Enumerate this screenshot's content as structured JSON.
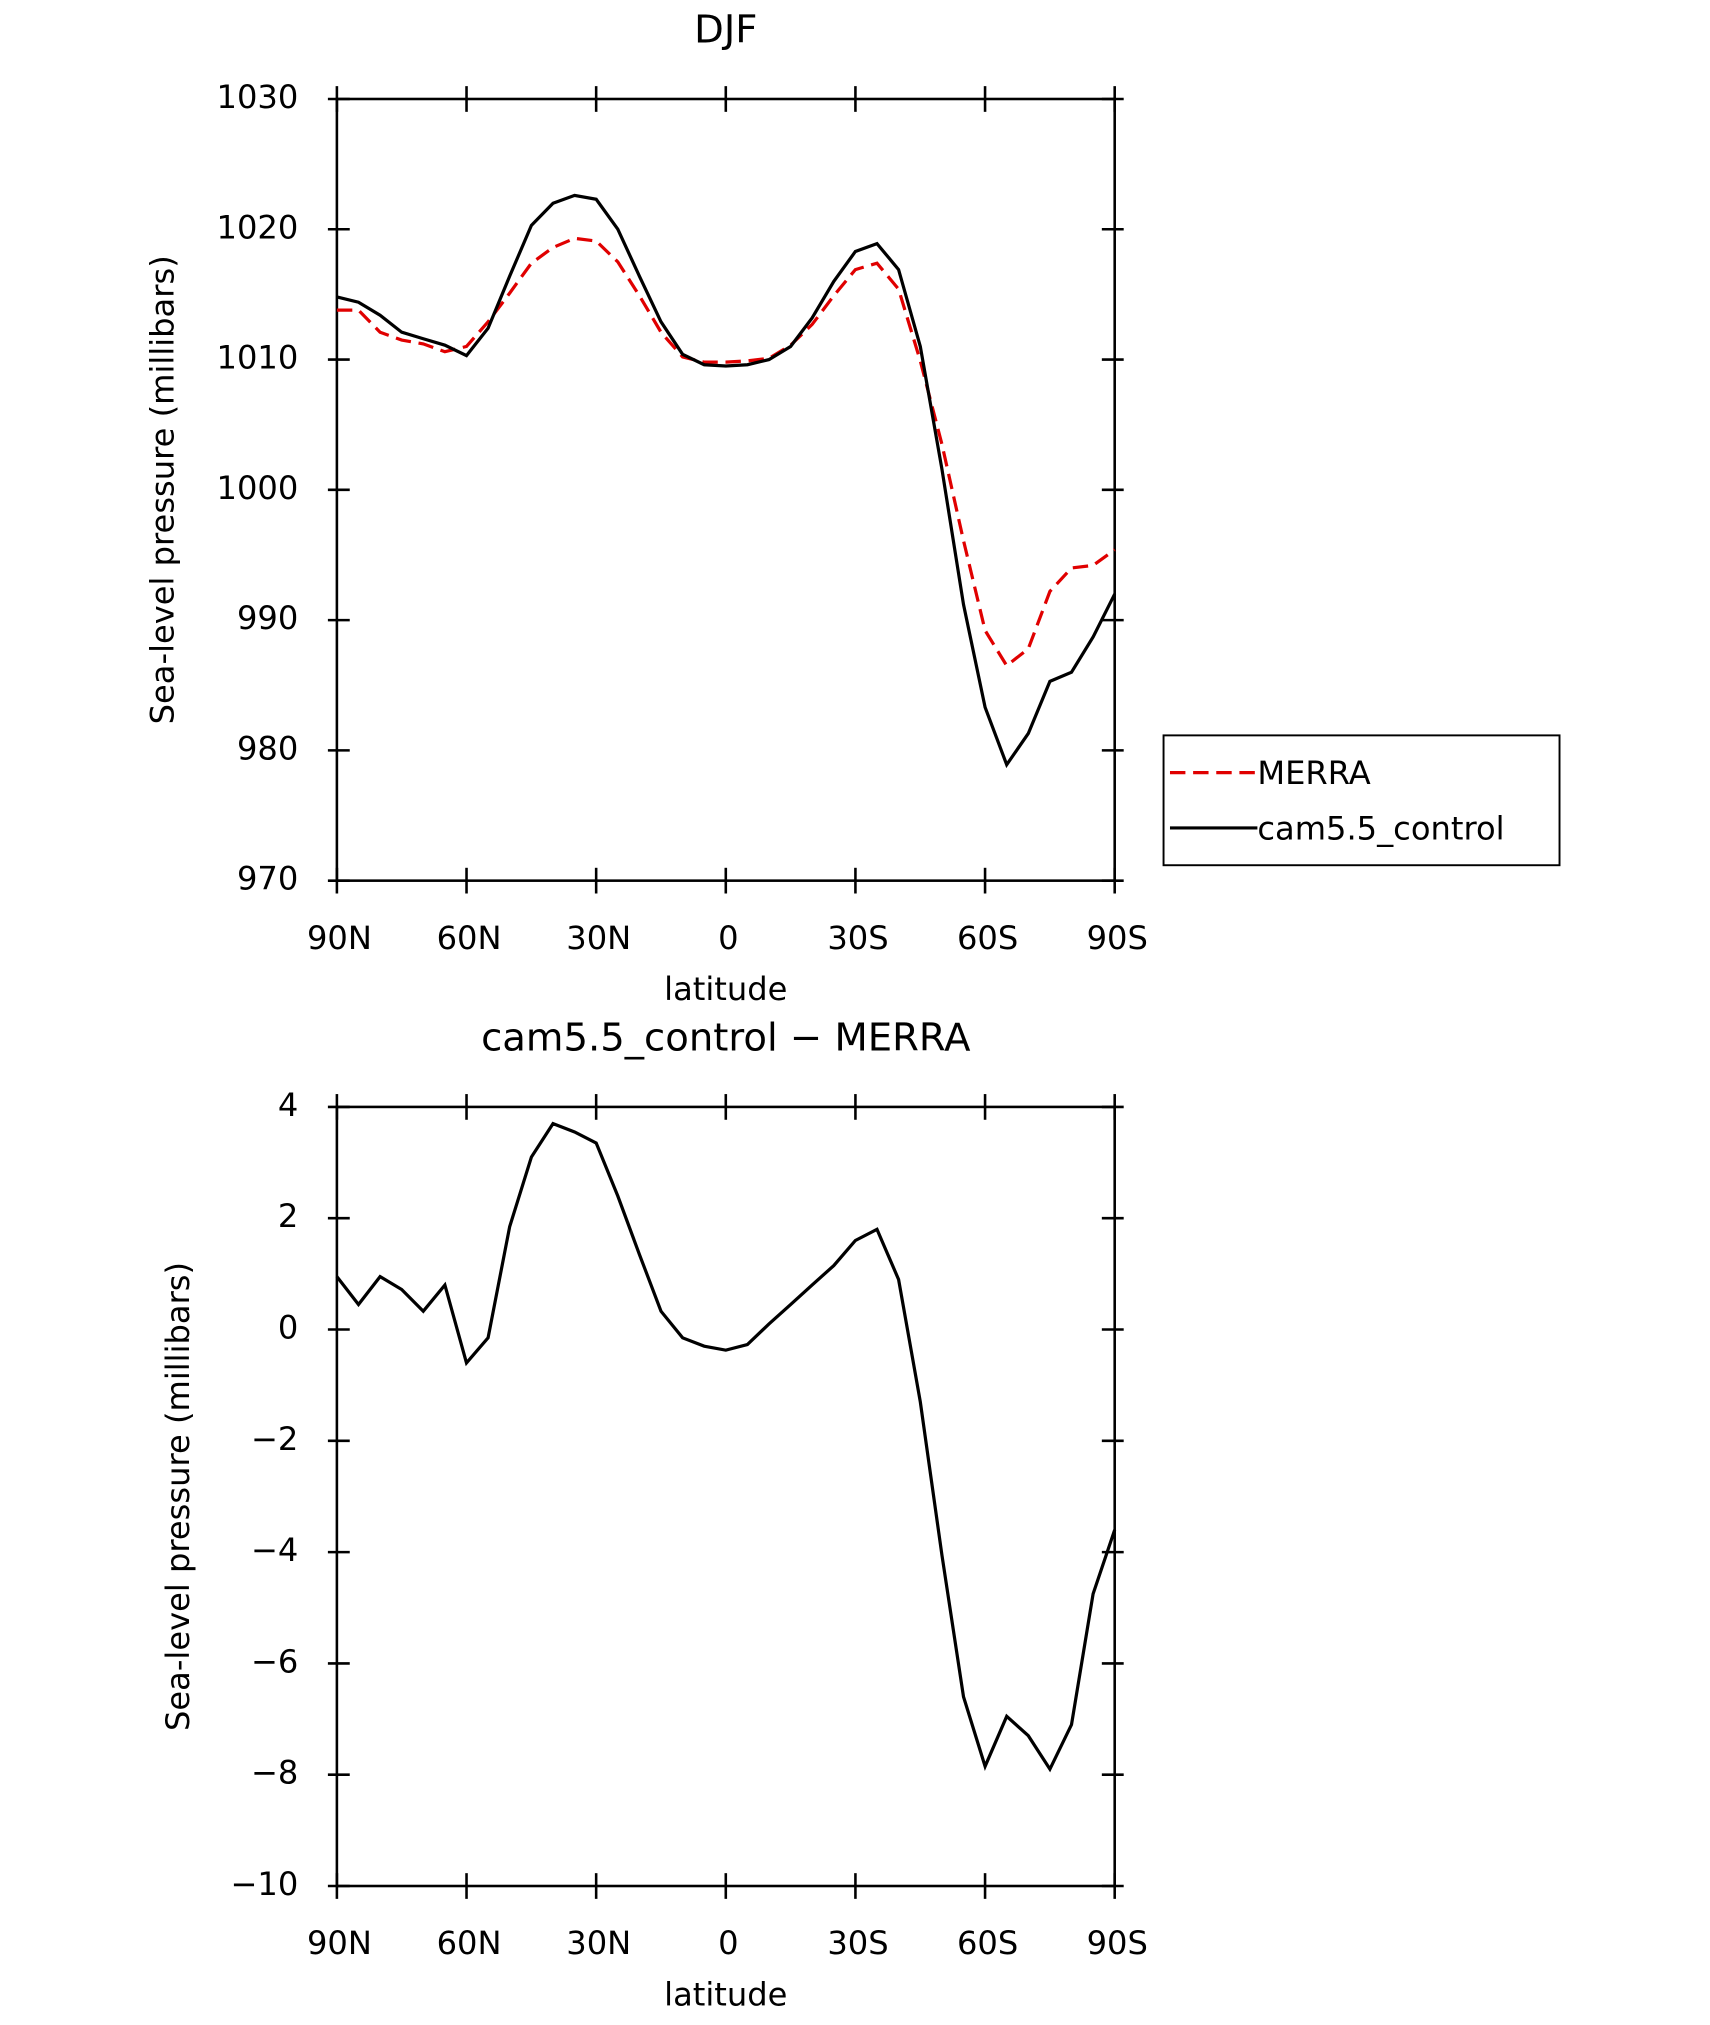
{
  "chart_data": [
    {
      "type": "line",
      "title": "DJF",
      "xlabel": "latitude",
      "ylabel": "Sea-level pressure (millibars)",
      "x": [
        90,
        85,
        80,
        75,
        70,
        65,
        60,
        55,
        50,
        45,
        40,
        35,
        30,
        25,
        20,
        15,
        10,
        5,
        0,
        -5,
        -10,
        -15,
        -20,
        -25,
        -30,
        -35,
        -40,
        -45,
        -50,
        -55,
        -60,
        -65,
        -70,
        -75,
        -80,
        -85,
        -90
      ],
      "series": [
        {
          "name": "MERRA",
          "color": "#e00000",
          "dash": true,
          "values": [
            1013.8,
            1013.8,
            1012.1,
            1011.5,
            1011.2,
            1010.6,
            1011.0,
            1012.9,
            1015.1,
            1017.4,
            1018.6,
            1019.3,
            1019.1,
            1017.5,
            1014.9,
            1012.1,
            1010.2,
            1009.8,
            1009.8,
            1009.9,
            1010.1,
            1011.1,
            1012.7,
            1014.9,
            1016.9,
            1017.4,
            1015.4,
            1009.9,
            1003.5,
            996.1,
            989.2,
            986.5,
            987.8,
            992.2,
            994.0,
            994.2,
            995.4
          ]
        },
        {
          "name": "cam5.5_control",
          "color": "#000000",
          "dash": false,
          "values": [
            1014.8,
            1014.4,
            1013.4,
            1012.1,
            1011.6,
            1011.1,
            1010.3,
            1012.4,
            1016.4,
            1020.3,
            1022.0,
            1022.6,
            1022.3,
            1020.0,
            1016.4,
            1012.9,
            1010.4,
            1009.6,
            1009.5,
            1009.6,
            1010.0,
            1011.0,
            1013.2,
            1016.0,
            1018.3,
            1018.9,
            1016.9,
            1011.0,
            1001.6,
            991.2,
            983.3,
            978.9,
            981.3,
            985.3,
            986.0,
            988.7,
            992.0
          ]
        }
      ],
      "xlim": [
        90,
        -90
      ],
      "xticks": [
        {
          "value": 90,
          "label": "90N"
        },
        {
          "value": 60,
          "label": "60N"
        },
        {
          "value": 30,
          "label": "30N"
        },
        0,
        {
          "value": -30,
          "label": "30S"
        },
        {
          "value": -60,
          "label": "60S"
        },
        {
          "value": -90,
          "label": "90S"
        }
      ],
      "ylim": [
        970,
        1030
      ],
      "yticks": [
        970,
        980,
        990,
        1000,
        1010,
        1020,
        1030
      ],
      "legend": "right"
    },
    {
      "type": "line",
      "title": "cam5.5_control − MERRA",
      "xlabel": "latitude",
      "ylabel": "Sea-level pressure (millibars)",
      "x": [
        90,
        85,
        80,
        75,
        70,
        65,
        60,
        55,
        50,
        45,
        40,
        35,
        30,
        25,
        20,
        15,
        10,
        5,
        0,
        -5,
        -10,
        -15,
        -20,
        -25,
        -30,
        -35,
        -40,
        -45,
        -50,
        -55,
        -60,
        -65,
        -70,
        -75,
        -80,
        -85,
        -90
      ],
      "series": [
        {
          "color": "#000000",
          "dash": false,
          "values": [
            0.95,
            0.45,
            0.95,
            0.72,
            0.33,
            0.8,
            -0.6,
            -0.15,
            1.85,
            3.1,
            3.7,
            3.55,
            3.35,
            2.4,
            1.35,
            0.33,
            -0.15,
            -0.3,
            -0.37,
            -0.27,
            0.1,
            0.45,
            0.8,
            1.15,
            1.6,
            1.8,
            0.9,
            -1.3,
            -4.05,
            -6.6,
            -7.85,
            -6.95,
            -7.3,
            -7.9,
            -7.1,
            -4.75,
            -3.6
          ]
        }
      ],
      "xlim": [
        90,
        -90
      ],
      "xticks": [
        {
          "value": 90,
          "label": "90N"
        },
        {
          "value": 60,
          "label": "60N"
        },
        {
          "value": 30,
          "label": "30N"
        },
        0,
        {
          "value": -30,
          "label": "30S"
        },
        {
          "value": -60,
          "label": "60S"
        },
        {
          "value": -90,
          "label": "90S"
        }
      ],
      "ylim": [
        -10,
        4
      ],
      "yticks": [
        {
          "value": -10,
          "label": "−10"
        },
        {
          "value": -8,
          "label": "−8"
        },
        {
          "value": -6,
          "label": "−6"
        },
        {
          "value": -4,
          "label": "−4"
        },
        {
          "value": -2,
          "label": "−2"
        },
        0,
        2,
        4
      ]
    }
  ]
}
